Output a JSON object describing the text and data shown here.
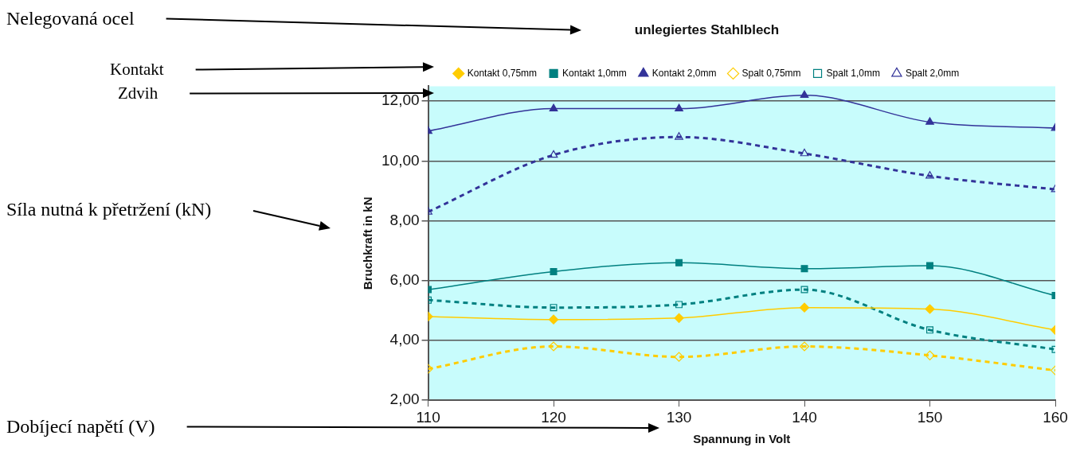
{
  "chart_data": {
    "type": "line",
    "title": "unlegiertes Stahlblech",
    "xlabel": "Spannung in Volt",
    "ylabel": "Bruchkraft in kN",
    "x": [
      110,
      120,
      130,
      140,
      150,
      160
    ],
    "xlim": [
      110,
      160
    ],
    "xticks": [
      110,
      120,
      130,
      140,
      150,
      160
    ],
    "ylim": [
      2,
      12.5
    ],
    "yticks": [
      {
        "value": 2,
        "label": "2,00"
      },
      {
        "value": 4,
        "label": "4,00"
      },
      {
        "value": 6,
        "label": "6,00"
      },
      {
        "value": 8,
        "label": "8,00"
      },
      {
        "value": 10,
        "label": "10,00"
      },
      {
        "value": 12,
        "label": "12,00"
      }
    ],
    "grid": "y",
    "legend": "top",
    "series": [
      {
        "name": "Kontakt 0,75mm",
        "color": "#ffcc00",
        "marker": "diamond",
        "line_style": "solid",
        "values": [
          4.8,
          4.7,
          4.75,
          5.1,
          5.05,
          4.35
        ]
      },
      {
        "name": "Kontakt 1,0mm",
        "color": "#008080",
        "marker": "square",
        "line_style": "solid",
        "values": [
          5.7,
          6.3,
          6.6,
          6.4,
          6.5,
          5.5
        ]
      },
      {
        "name": "Kontakt 2,0mm",
        "color": "#333399",
        "marker": "triangle",
        "line_style": "solid",
        "values": [
          11.0,
          11.75,
          11.75,
          12.2,
          11.3,
          11.1
        ]
      },
      {
        "name": "Spalt 0,75mm",
        "color": "#ffcc00",
        "marker": "diamond",
        "line_style": "dashed",
        "values": [
          3.05,
          3.8,
          3.45,
          3.8,
          3.5,
          3.0
        ]
      },
      {
        "name": "Spalt 1,0mm",
        "color": "#008080",
        "marker": "square",
        "line_style": "dashed",
        "values": [
          5.35,
          5.1,
          5.2,
          5.7,
          4.35,
          3.7
        ]
      },
      {
        "name": "Spalt 2,0mm",
        "color": "#333399",
        "marker": "triangle",
        "line_style": "dashed",
        "values": [
          8.3,
          10.2,
          10.8,
          10.25,
          9.5,
          9.05
        ]
      }
    ],
    "annotations": [
      "Nelegovaná ocel",
      "Kontakt",
      "Zdvih",
      "Síla nutná k přetržení (kN)",
      "Dobíjecí napětí (V)"
    ]
  }
}
